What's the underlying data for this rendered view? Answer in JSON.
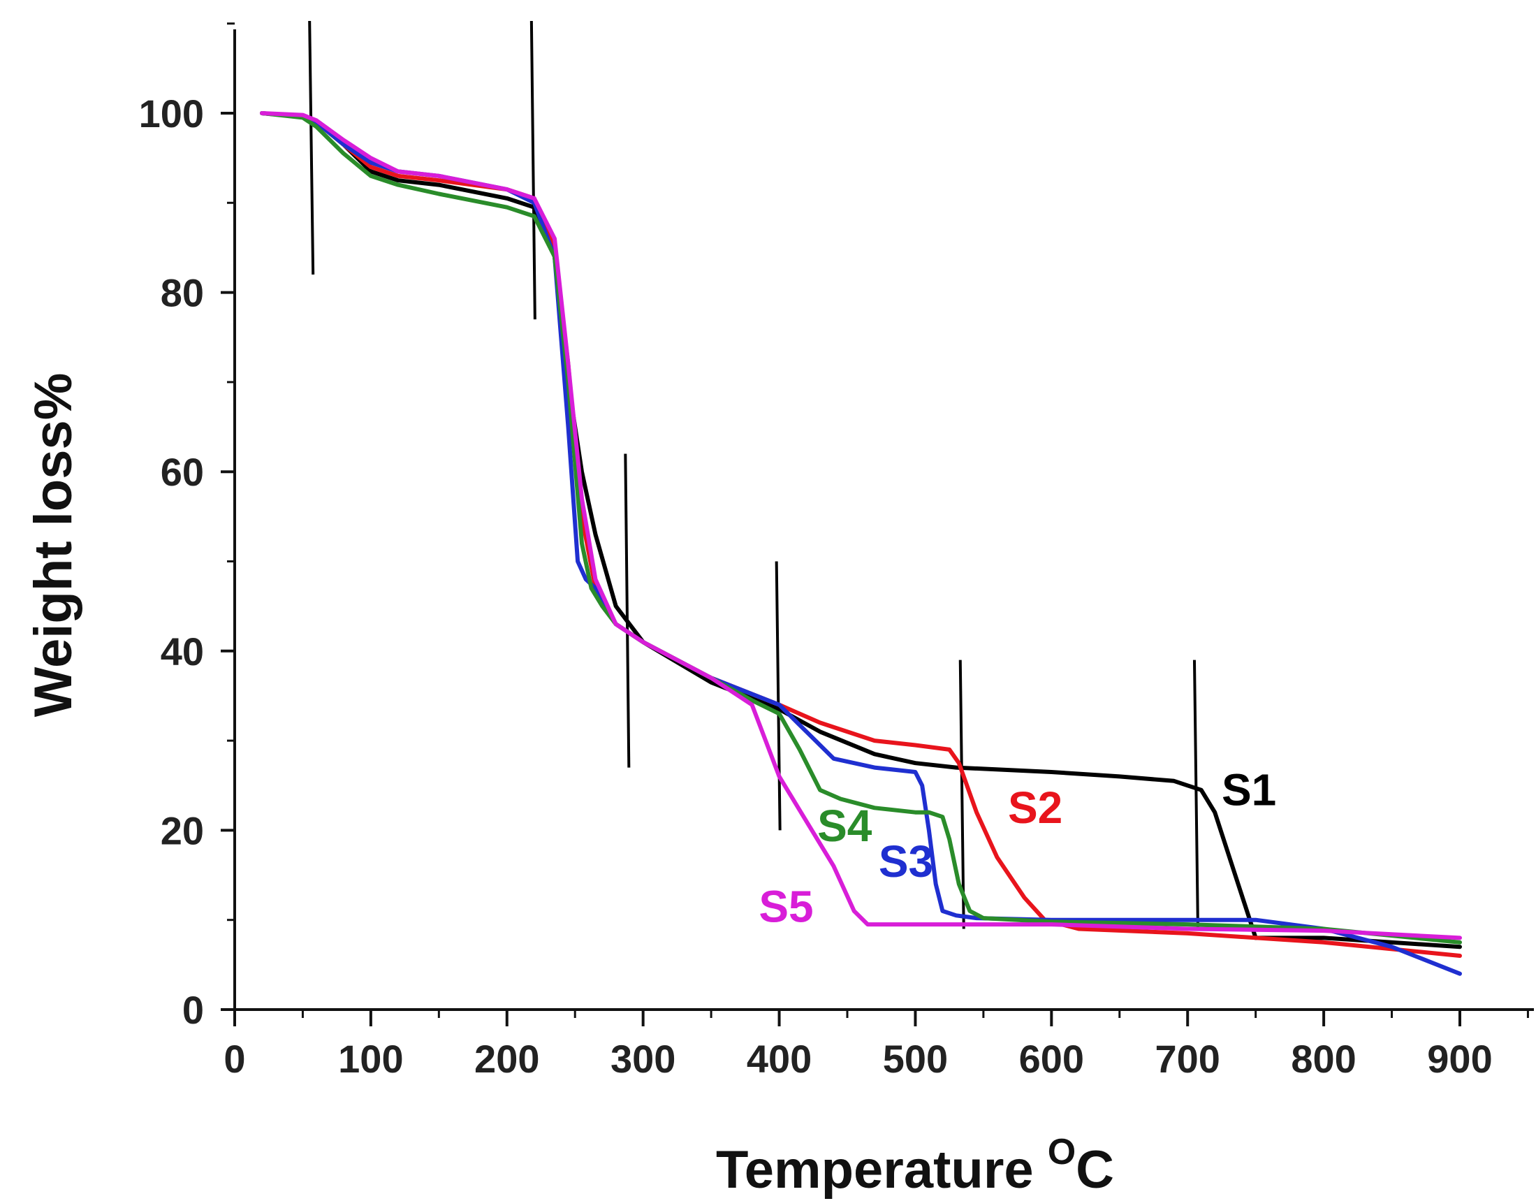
{
  "chart_data": {
    "type": "line",
    "title": "",
    "xlabel": "Temperature",
    "xlabel_superscript": "O",
    "xlabel_unit": "C",
    "ylabel": "Weight loss%",
    "xlim": [
      0,
      950
    ],
    "ylim": [
      0,
      110
    ],
    "x_ticks": [
      "0",
      "100",
      "200",
      "300",
      "400",
      "500",
      "600",
      "700",
      "800",
      "900"
    ],
    "y_ticks": [
      "0",
      "20",
      "40",
      "60",
      "80",
      "100"
    ],
    "legend": "inline labels near curves",
    "vertical_markers": [
      {
        "x": 55,
        "y_from": 82,
        "y_to": 110
      },
      {
        "x": 218,
        "y_from": 77,
        "y_to": 110
      },
      {
        "x": 287,
        "y_from": 27,
        "y_to": 62
      },
      {
        "x": 398,
        "y_from": 20,
        "y_to": 50
      },
      {
        "x": 533,
        "y_from": 9,
        "y_to": 39
      },
      {
        "x": 705,
        "y_from": 9,
        "y_to": 39
      }
    ],
    "series": [
      {
        "name": "S1",
        "color": "#000000",
        "x": [
          20,
          50,
          60,
          80,
          100,
          120,
          150,
          200,
          220,
          235,
          245,
          255,
          265,
          280,
          300,
          350,
          400,
          430,
          470,
          500,
          530,
          600,
          650,
          690,
          700,
          710,
          720,
          735,
          750,
          800,
          900
        ],
        "y": [
          100,
          99.6,
          99,
          96.5,
          93.5,
          92.5,
          92,
          90.5,
          89.5,
          84,
          70,
          60,
          53,
          45,
          41,
          36.5,
          33.5,
          31,
          28.5,
          27.5,
          27,
          26.5,
          26,
          25.5,
          25,
          24.5,
          22,
          15,
          8,
          8,
          7
        ]
      },
      {
        "name": "S2",
        "color": "#e8141c",
        "x": [
          20,
          50,
          60,
          80,
          100,
          120,
          150,
          200,
          220,
          235,
          245,
          255,
          265,
          280,
          300,
          350,
          400,
          430,
          470,
          500,
          525,
          532,
          545,
          560,
          580,
          595,
          620,
          700,
          800,
          900
        ],
        "y": [
          100,
          99.6,
          99,
          96.5,
          94,
          93,
          92.5,
          91.5,
          90.5,
          85,
          72,
          55,
          47,
          43,
          41,
          37,
          34,
          32,
          30,
          29.5,
          29,
          27.5,
          22,
          17,
          12.5,
          10,
          9,
          8.5,
          7.5,
          6
        ]
      },
      {
        "name": "S3",
        "color": "#1f2fd0",
        "x": [
          20,
          50,
          60,
          80,
          100,
          120,
          150,
          200,
          220,
          235,
          245,
          252,
          258,
          265,
          280,
          300,
          350,
          400,
          420,
          440,
          470,
          500,
          505,
          510,
          515,
          520,
          530,
          545,
          600,
          700,
          750,
          800,
          850,
          900
        ],
        "y": [
          100,
          99.6,
          99,
          96.5,
          94.5,
          93.5,
          93,
          91.5,
          90,
          84,
          65,
          50,
          48,
          47,
          43,
          41,
          37,
          34,
          31,
          28,
          27,
          26.5,
          25,
          20,
          14,
          11,
          10.5,
          10.2,
          10,
          10,
          10,
          9,
          7,
          4
        ]
      },
      {
        "name": "S4",
        "color": "#2a8c2a",
        "x": [
          20,
          50,
          60,
          80,
          100,
          120,
          150,
          200,
          220,
          235,
          245,
          255,
          262,
          270,
          280,
          300,
          350,
          380,
          400,
          415,
          430,
          445,
          470,
          500,
          510,
          520,
          525,
          532,
          540,
          550,
          600,
          700,
          800,
          900
        ],
        "y": [
          100,
          99.5,
          98.5,
          95.5,
          93,
          92,
          91,
          89.5,
          88.5,
          84,
          70,
          52,
          47,
          45,
          43,
          41,
          37,
          34.5,
          33,
          29,
          24.5,
          23.5,
          22.5,
          22,
          22,
          21.5,
          19,
          14,
          11,
          10.2,
          9.8,
          9.5,
          9,
          7.5
        ]
      },
      {
        "name": "S5",
        "color": "#d81ed8",
        "x": [
          20,
          50,
          60,
          80,
          100,
          120,
          150,
          200,
          220,
          235,
          245,
          255,
          265,
          280,
          300,
          350,
          380,
          390,
          400,
          420,
          440,
          455,
          465,
          500,
          600,
          700,
          800,
          900
        ],
        "y": [
          100,
          99.8,
          99.2,
          97,
          95,
          93.5,
          93,
          91.5,
          90.5,
          86,
          72,
          57,
          48,
          43,
          41,
          37,
          34,
          30,
          26,
          21,
          16,
          11,
          9.5,
          9.5,
          9.5,
          9,
          8.8,
          8
        ]
      }
    ],
    "series_labels": [
      {
        "text": "S1",
        "x": 725,
        "y": 22.8
      },
      {
        "text": "S2",
        "x": 568,
        "y": 20.8
      },
      {
        "text": "S3",
        "x": 473,
        "y": 14.8
      },
      {
        "text": "S4",
        "x": 428,
        "y": 18.8
      },
      {
        "text": "S5",
        "x": 385,
        "y": 9.8
      }
    ]
  }
}
